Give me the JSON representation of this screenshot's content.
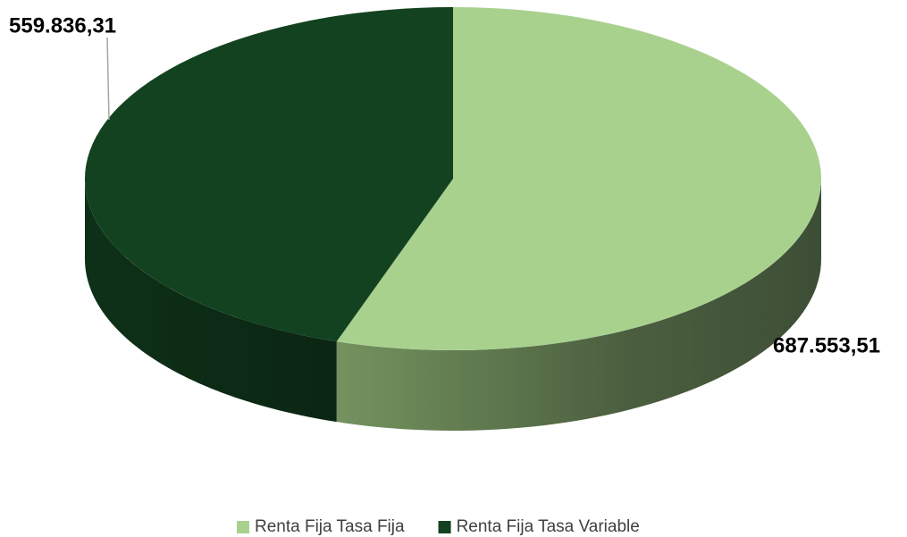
{
  "chart_data": {
    "type": "pie",
    "categories": [
      "Renta Fija Tasa Fija",
      "Renta Fija Tasa Variable"
    ],
    "values": [
      687553.51,
      559836.31
    ],
    "value_labels": [
      "687.553,51",
      "559.836,31"
    ],
    "colors": [
      "#a9d18e",
      "#134220"
    ],
    "legend": "bottom"
  }
}
